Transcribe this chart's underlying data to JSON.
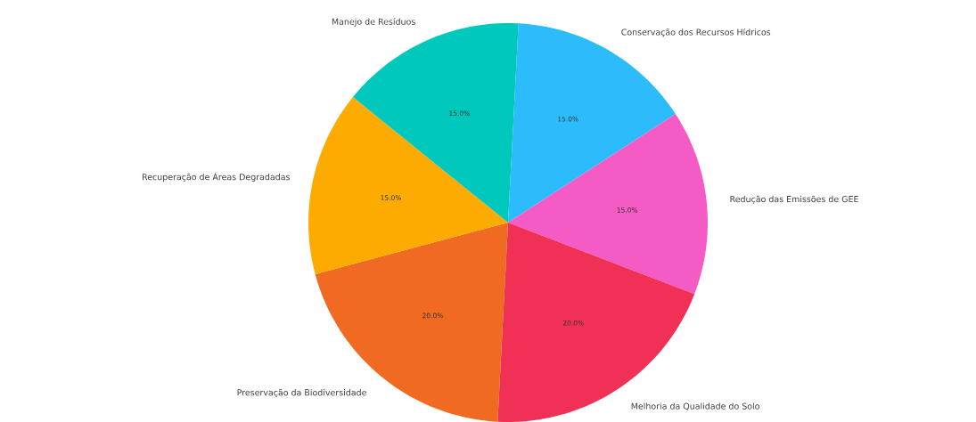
{
  "chart_data": {
    "type": "pie",
    "categories": [
      "Conservação dos Recursos Hídricos",
      "Redução das Emissões de GEE",
      "Melhoria da Qualidade do Solo",
      "Preservação da Biodiversidade",
      "Recuperação de Áreas Degradadas",
      "Manejo de Resíduos"
    ],
    "values": [
      15,
      15,
      20,
      20,
      15,
      15
    ],
    "colors": [
      "#2dbcfb",
      "#f45bc5",
      "#f03055",
      "#f06a22",
      "#fdab00",
      "#00c8bc"
    ],
    "value_labels": [
      "15.0%",
      "15.0%",
      "20.0%",
      "20.0%",
      "15.0%",
      "15.0%"
    ]
  }
}
